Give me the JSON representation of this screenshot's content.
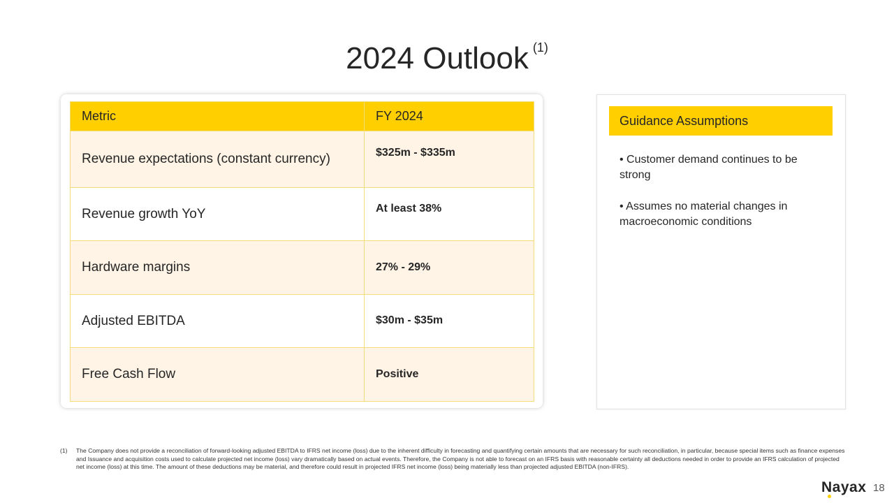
{
  "slide": {
    "title": "2024 Outlook",
    "title_note": "(1)",
    "page_number": "18",
    "logo_text": "Nayax"
  },
  "table": {
    "headers": [
      "Metric",
      "FY 2024"
    ],
    "rows": [
      {
        "metric": "Revenue expectations (constant currency)",
        "value": "$325m - $335m"
      },
      {
        "metric": "Revenue growth YoY",
        "value": "At least 38%"
      },
      {
        "metric": "Hardware margins",
        "value": "27% - 29%"
      },
      {
        "metric": "Adjusted EBITDA",
        "value": "$30m - $35m"
      },
      {
        "metric": "Free Cash Flow",
        "value": "Positive"
      }
    ]
  },
  "guidance": {
    "title": "Guidance Assumptions",
    "items": [
      "• Customer demand continues to be strong",
      "• Assumes no material changes in macroeconomic conditions"
    ]
  },
  "footnote": {
    "marker": "(1)",
    "text": "The Company does not provide a reconciliation of forward-looking adjusted EBITDA to IFRS net income (loss) due to the inherent difficulty in forecasting and quantifying certain amounts that are necessary for such reconciliation, in particular, because special items such as finance expenses and Issuance and acquisition costs used to calculate projected net income (loss) vary dramatically based on actual events.  Therefore, the Company is not able to forecast on an IFRS basis with reasonable certainty all deductions needed in order to provide an IFRS calculation of projected net income (loss) at this time. The amount of these deductions may be material, and therefore could result in projected IFRS net income (loss) being materially less than projected adjusted EBITDA (non-IFRS)."
  },
  "colors": {
    "accent": "#ffcf00",
    "row_tint": "#fff4e5",
    "text": "#262626"
  }
}
